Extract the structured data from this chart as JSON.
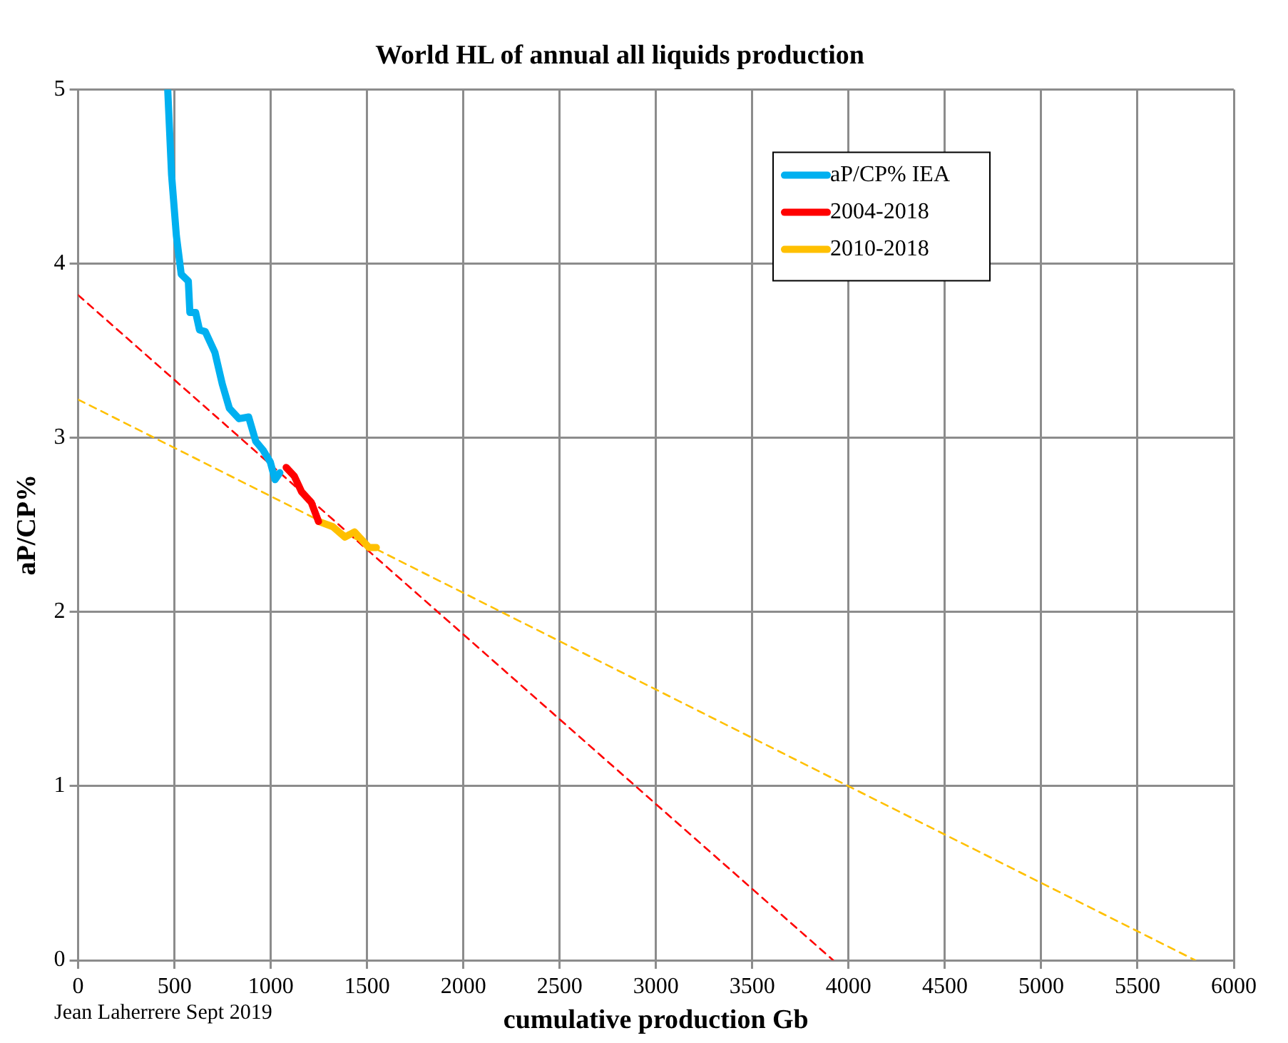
{
  "chart_data": {
    "type": "line",
    "title": "World HL of annual all liquids production",
    "xlabel": "cumulative production Gb",
    "ylabel": "aP/CP%",
    "annotations": [
      "Jean Laherrere Sept 2019"
    ],
    "xlim": [
      0,
      6000
    ],
    "xticks": [
      0,
      500,
      1000,
      1500,
      2000,
      2500,
      3000,
      3500,
      4000,
      4500,
      5000,
      5500,
      6000
    ],
    "ylim": [
      0,
      5
    ],
    "yticks": [
      0,
      1,
      2,
      3,
      4,
      5
    ],
    "grid": true,
    "legend": "top right",
    "marker": "none",
    "series": [
      {
        "name": "aP/CP% IEA",
        "color": "#00b0f0",
        "x": [
          465,
          485,
          510,
          535,
          572,
          580,
          610,
          630,
          660,
          710,
          748,
          785,
          835,
          885,
          922,
          960,
          998,
          1022,
          1047
        ],
        "values": [
          5.0,
          4.51,
          4.16,
          3.94,
          3.9,
          3.72,
          3.72,
          3.62,
          3.61,
          3.49,
          3.31,
          3.17,
          3.11,
          3.12,
          2.98,
          2.93,
          2.86,
          2.76,
          2.8
        ]
      },
      {
        "name": "2004-2018",
        "color": "#ff0000",
        "x": [
          1080,
          1122,
          1160,
          1210,
          1248
        ],
        "values": [
          2.83,
          2.78,
          2.69,
          2.63,
          2.52
        ]
      },
      {
        "name": "2010-2018",
        "color": "#ffc000",
        "x": [
          1248,
          1322,
          1385,
          1435,
          1510,
          1548
        ],
        "values": [
          2.52,
          2.49,
          2.43,
          2.46,
          2.37,
          2.37
        ]
      },
      {
        "type": "line",
        "color": "#ff0000",
        "line_style": "dashed",
        "x": [
          0,
          3920
        ],
        "values": [
          3.82,
          0
        ]
      },
      {
        "type": "line",
        "color": "#ffc000",
        "line_style": "dashed",
        "x": [
          0,
          5800
        ],
        "values": [
          3.22,
          0
        ]
      }
    ]
  }
}
